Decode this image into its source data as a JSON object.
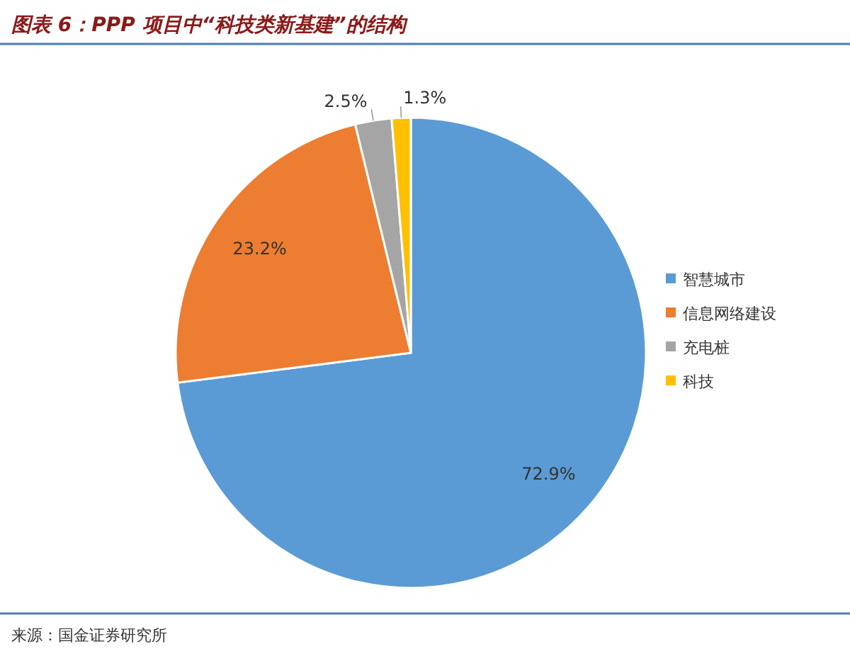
{
  "chart_data": {
    "type": "pie",
    "title": "图表 6：PPP 项目中“科技类新基建”的结构",
    "categories": [
      "智慧城市",
      "信息网络建设",
      "充电桩",
      "科技"
    ],
    "values": [
      72.9,
      23.2,
      2.5,
      1.3
    ],
    "colors": [
      "#5b9bd5",
      "#ed7d31",
      "#a5a5a5",
      "#ffc000"
    ],
    "value_labels": [
      "72.9%",
      "23.2%",
      "2.5%",
      "1.3%"
    ],
    "legend": "right",
    "annotations": [
      "来源：国金证券研究所"
    ]
  }
}
